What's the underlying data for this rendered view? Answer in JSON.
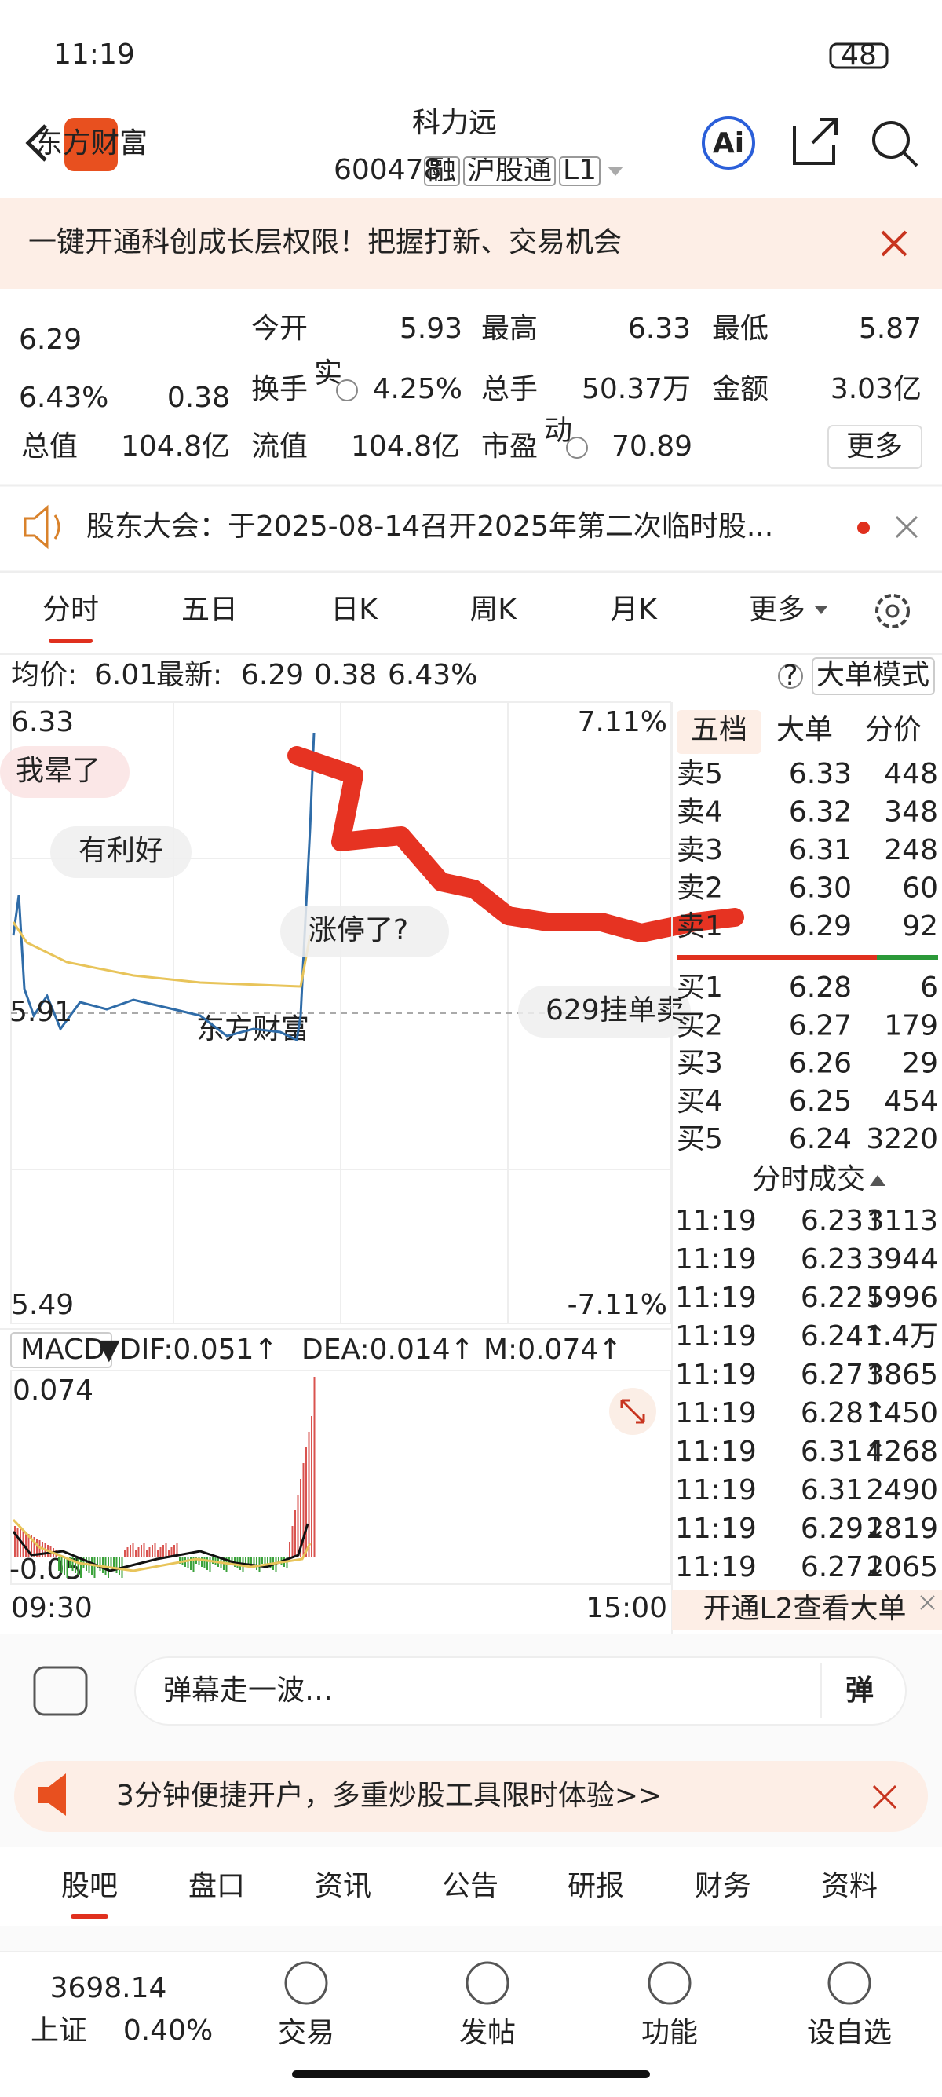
{
  "status": {
    "time": "11:19",
    "battery": "48"
  },
  "header": {
    "title": "科力远",
    "code": "600478",
    "tags": [
      "融",
      "沪股通",
      "L1"
    ],
    "logo": "东方财富"
  },
  "banner": {
    "text": "一键开通科创成长层权限！把握打新、交易机会"
  },
  "quote": {
    "price": "6.29",
    "change_pct": "6.43%",
    "change": "0.38",
    "more": "更多",
    "fields": [
      {
        "label": "今开",
        "value": "5.93",
        "color": "#e0301e"
      },
      {
        "label": "最高",
        "value": "6.33",
        "color": "#e0301e"
      },
      {
        "label": "最低",
        "value": "5.87",
        "color": "#2b9939"
      },
      {
        "label": "换手",
        "sup": "实",
        "value": "4.25%",
        "color": "#222"
      },
      {
        "label": "总手",
        "value": "50.37万",
        "color": "#222"
      },
      {
        "label": "金额",
        "value": "3.03亿",
        "color": "#222"
      },
      {
        "label": "总值",
        "value": "104.8亿",
        "color": "#222"
      },
      {
        "label": "流值",
        "value": "104.8亿",
        "color": "#222"
      },
      {
        "label": "市盈",
        "sup": "动",
        "value": "70.89",
        "color": "#222"
      }
    ]
  },
  "notice": {
    "text": "股东大会：于2025-08-14召开2025年第二次临时股..."
  },
  "tabs": [
    "分时",
    "五日",
    "日K",
    "周K",
    "月K",
    "更多"
  ],
  "info": {
    "avg_label": "均价:",
    "avg": "6.01",
    "latest_label": "最新:",
    "latest": "6.29",
    "change": "0.38",
    "pct": "6.43%",
    "mode": "大单模式"
  },
  "chart": {
    "top_price": "6.33",
    "top_pct": "7.11%",
    "bottom_price": "5.49",
    "bottom_pct": "-7.11%",
    "ref": "5.91",
    "danmaku": [
      "我晕了",
      "有利好",
      "涨停了?",
      "629挂单卖"
    ]
  },
  "macd": {
    "name": "MACD",
    "dif": "DIF:0.051↑",
    "dea": "DEA:0.014↑",
    "m": "M:0.074↑",
    "top": "0.074",
    "bottom": "-0.05"
  },
  "time_axis": [
    "09:30",
    "15:00"
  ],
  "orderbook": {
    "tabs": [
      "五档",
      "大单",
      "分价"
    ],
    "asks": [
      {
        "label": "卖5",
        "price": "6.33",
        "volume": "448"
      },
      {
        "label": "卖4",
        "price": "6.32",
        "volume": "348"
      },
      {
        "label": "卖3",
        "price": "6.31",
        "volume": "248"
      },
      {
        "label": "卖2",
        "price": "6.30",
        "volume": "60"
      },
      {
        "label": "卖1",
        "price": "6.29",
        "volume": "92"
      }
    ],
    "bids": [
      {
        "label": "买1",
        "price": "6.28",
        "volume": "6"
      },
      {
        "label": "买2",
        "price": "6.27",
        "volume": "179"
      },
      {
        "label": "买3",
        "price": "6.26",
        "volume": "29"
      },
      {
        "label": "买4",
        "price": "6.25",
        "volume": "454"
      },
      {
        "label": "买5",
        "price": "6.24",
        "volume": "3220"
      }
    ]
  },
  "trades_header": "分时成交",
  "trades": [
    {
      "time": "11:19",
      "price": "6.23",
      "dir": "↑",
      "volume": "3113",
      "color": "#e0301e"
    },
    {
      "time": "11:19",
      "price": "6.23",
      "dir": "",
      "volume": "3944",
      "color": "#e0301e"
    },
    {
      "time": "11:19",
      "price": "6.22",
      "dir": "↓",
      "volume": "5996",
      "color": "#2b9939"
    },
    {
      "time": "11:19",
      "price": "6.24",
      "dir": "↑",
      "volume": "1.4万",
      "color": "#e0301e"
    },
    {
      "time": "11:19",
      "price": "6.27",
      "dir": "↑",
      "volume": "3865",
      "color": "#e0301e"
    },
    {
      "time": "11:19",
      "price": "6.28",
      "dir": "↑",
      "volume": "1450",
      "color": "#e0301e"
    },
    {
      "time": "11:19",
      "price": "6.31",
      "dir": "↑",
      "volume": "4268",
      "color": "#e0301e"
    },
    {
      "time": "11:19",
      "price": "6.31",
      "dir": "",
      "volume": "2490",
      "color": "#2b9939"
    },
    {
      "time": "11:19",
      "price": "6.29",
      "dir": "↓",
      "volume": "2819",
      "color": "#2b9939"
    },
    {
      "time": "11:19",
      "price": "6.27",
      "dir": "↓",
      "volume": "2065",
      "color": "#2b9939"
    }
  ],
  "l2": "开通L2查看大单",
  "comment": {
    "placeholder": "弹幕走一波…",
    "button": "弹"
  },
  "ad": {
    "text": "3分钟便捷开户，多重炒股工具限时体验>>"
  },
  "bottom_tabs": [
    "股吧",
    "盘口",
    "资讯",
    "公告",
    "研报",
    "财务",
    "资料"
  ],
  "nav": {
    "index_value": "3698.14",
    "index_name": "上证",
    "index_pct": "0.40%",
    "items": [
      "交易",
      "发帖",
      "功能",
      "设自选"
    ]
  }
}
